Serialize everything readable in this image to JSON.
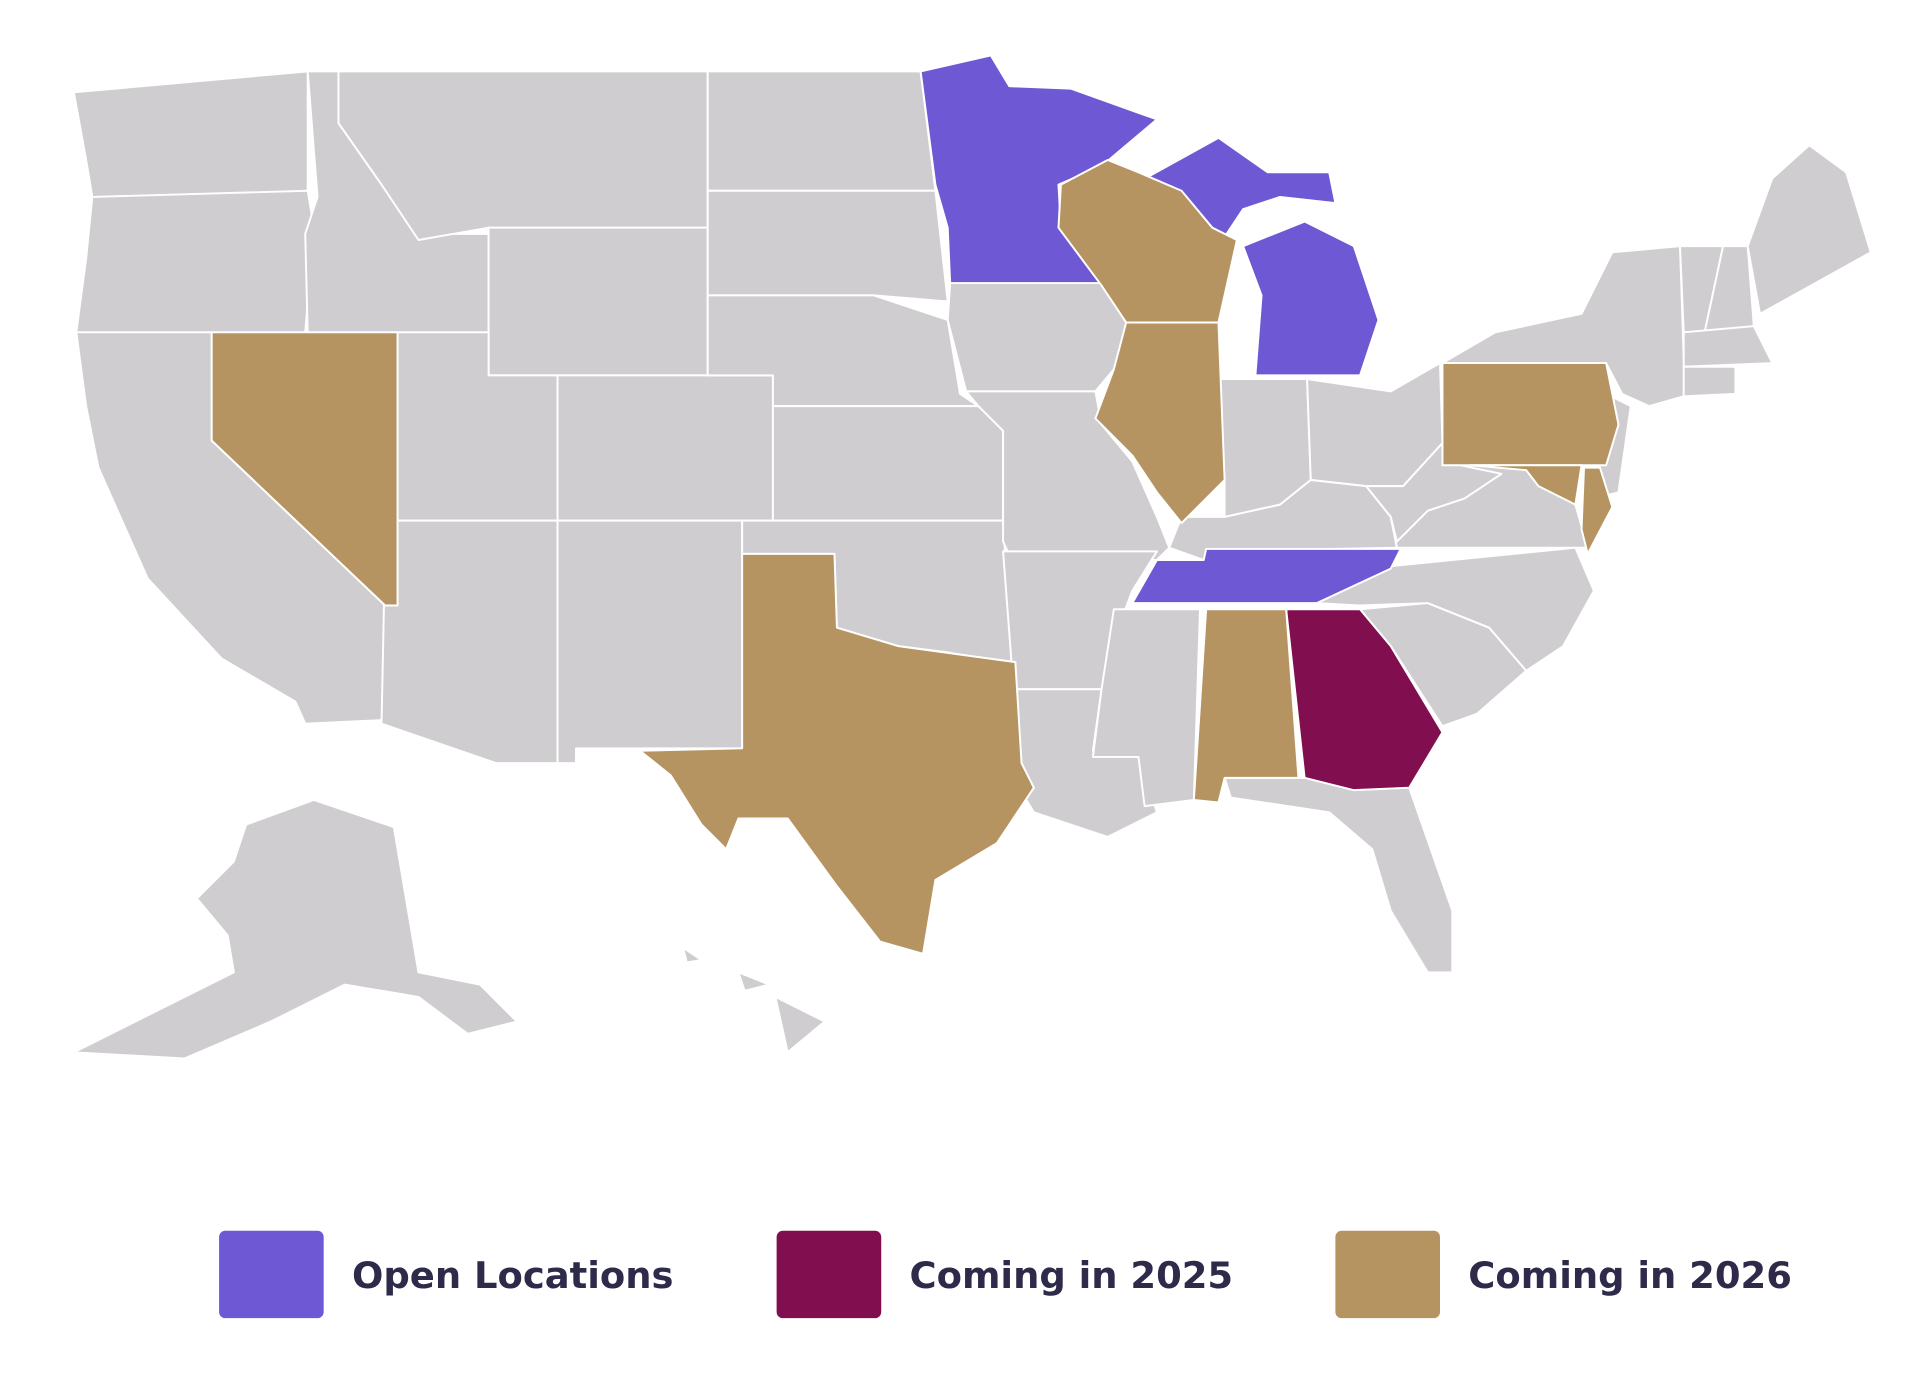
{
  "legend": [
    {
      "label": "Open Locations",
      "color": "#6f58d3"
    },
    {
      "label": "Coming in 2025",
      "color": "#810f50"
    },
    {
      "label": "Coming in 2026",
      "color": "#b59461"
    }
  ],
  "map": {
    "base_color": "#cfcdcf"
  }
}
